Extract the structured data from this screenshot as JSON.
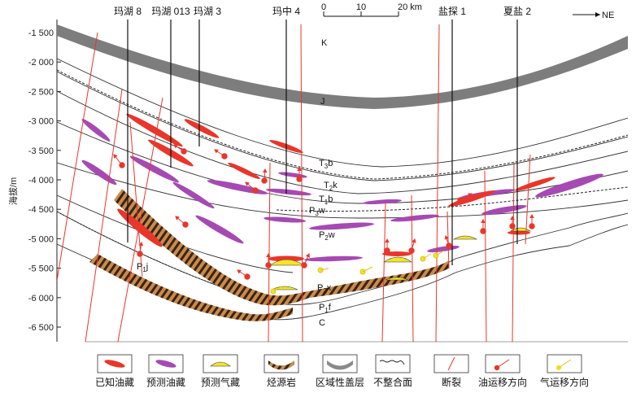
{
  "y_axis": {
    "label": "海拔/m",
    "ticks": [
      "-1 500",
      "-2 000",
      "-2 500",
      "-3 000",
      "-3 500",
      "-4 000",
      "-4 500",
      "-5 000",
      "-5 500",
      "-6 000",
      "-6 500"
    ]
  },
  "wells": [
    "玛湖 8",
    "玛湖 013",
    "玛湖 3",
    "玛中 4",
    "盐探 1",
    "夏盐 2"
  ],
  "scale_bar": {
    "labels": [
      "0",
      "10",
      "20 km"
    ]
  },
  "direction": "NE",
  "strata": {
    "K": "K",
    "J": "J",
    "T3b": "T",
    "T3b_sub": "3",
    "T3b_tail": "b",
    "T2k": "T",
    "T2k_sub": "2",
    "T2k_tail": "k",
    "T1b": "T",
    "T1b_sub": "1",
    "T1b_tail": "b",
    "P3w": "P",
    "P3w_sub": "3",
    "P3w_tail": "w",
    "P2w": "P",
    "P2w_sub": "2",
    "P2w_tail": "w",
    "P2x": "P",
    "P2x_sub": "2",
    "P2x_tail": "x",
    "P1f": "P",
    "P1f_sub": "1",
    "P1f_tail": "f",
    "P1j": "P",
    "P1j_sub": "1",
    "P1j_tail": "j",
    "C": "C"
  },
  "legend": [
    {
      "label": "已知油藏",
      "color": "#e8362a"
    },
    {
      "label": "预测油藏",
      "color": "#a64ab3"
    },
    {
      "label": "预测气藏",
      "color": "#f2e52b"
    },
    {
      "label": "烃源岩",
      "color": "#9a5a2c"
    },
    {
      "label": "区域性盖层",
      "color": "#8a8a8a"
    },
    {
      "label": "不整合面",
      "color": "#222222"
    },
    {
      "label": "断裂",
      "color": "#e8362a"
    },
    {
      "label": "油运移方向",
      "color": "#e8362a"
    },
    {
      "label": "气运移方向",
      "color": "#f2e52b"
    }
  ]
}
